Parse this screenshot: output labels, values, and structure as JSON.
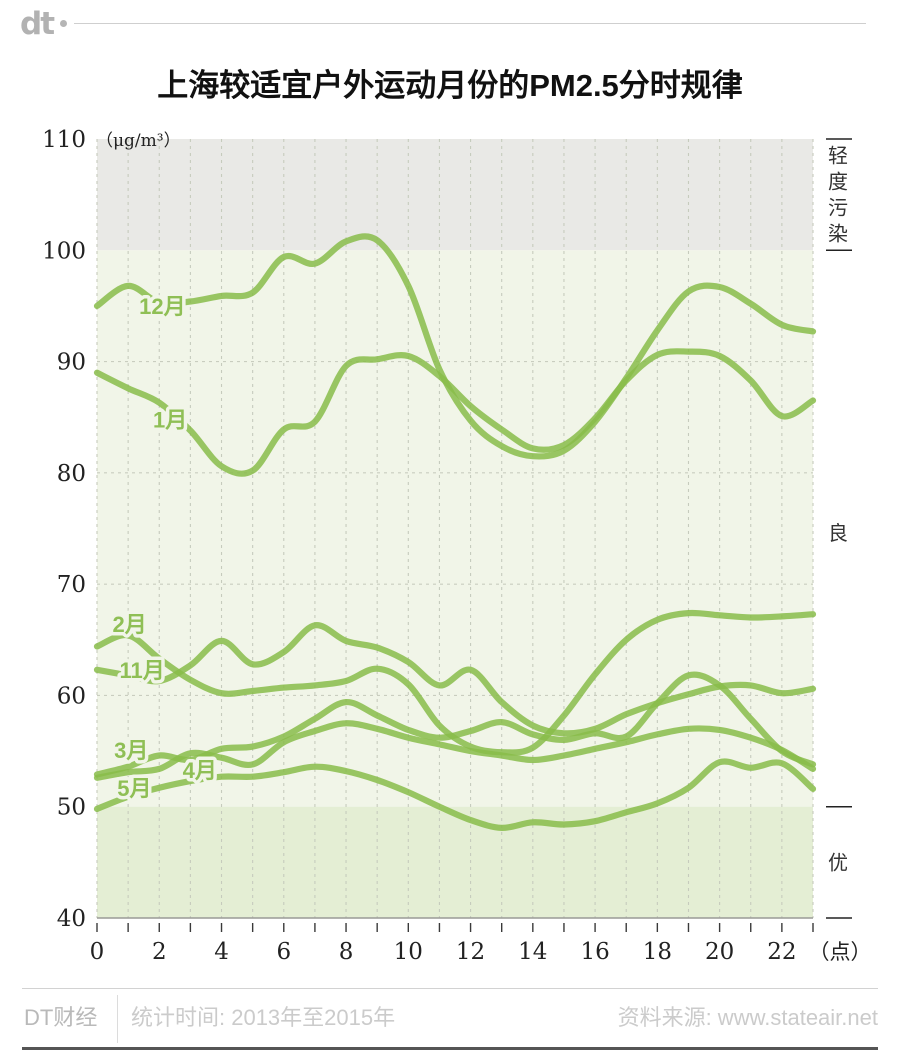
{
  "header": {
    "logo": "dt",
    "title": "上海较适宜户外运动月份的PM2.5分时规律"
  },
  "axis": {
    "y_unit": "（μg/m³）",
    "y_ticks": [
      110,
      100,
      90,
      80,
      70,
      60,
      50,
      40
    ],
    "x_ticks": [
      0,
      2,
      4,
      6,
      8,
      10,
      12,
      14,
      16,
      18,
      20,
      22
    ],
    "x_unit": "（点）",
    "right_tick_values": [
      110,
      100,
      50,
      40
    ]
  },
  "bands": [
    {
      "label": "轻度污染",
      "from": 100,
      "to": 110,
      "color": "#e9e9e6"
    },
    {
      "label": "良",
      "from": 50,
      "to": 100,
      "color": "#f1f5e8"
    },
    {
      "label": "优",
      "from": 40,
      "to": 50,
      "color": "#e4eed4"
    }
  ],
  "chart_data": {
    "type": "line",
    "title": "上海较适宜户外运动月份的PM2.5分时规律",
    "xlabel": "（点）",
    "ylabel": "（μg/m³）",
    "x": [
      0,
      1,
      2,
      3,
      4,
      5,
      6,
      7,
      8,
      9,
      10,
      11,
      12,
      13,
      14,
      15,
      16,
      17,
      18,
      19,
      20,
      21,
      22,
      23
    ],
    "xlim": [
      0,
      23
    ],
    "ylim": [
      40,
      110
    ],
    "grid": "dashed",
    "line_color": "#88bc4a",
    "series": [
      {
        "name": "12月",
        "values": [
          95.0,
          96.8,
          95.3,
          95.4,
          95.9,
          96.2,
          99.4,
          98.8,
          100.8,
          100.9,
          96.8,
          89.3,
          84.7,
          82.4,
          81.5,
          82.0,
          84.6,
          88.5,
          92.8,
          96.3,
          96.7,
          95.2,
          93.3,
          92.7
        ]
      },
      {
        "name": "1月",
        "values": [
          89.0,
          87.6,
          86.3,
          83.8,
          80.6,
          80.2,
          83.9,
          84.6,
          89.6,
          90.2,
          90.5,
          88.7,
          86.0,
          83.9,
          82.2,
          82.5,
          84.9,
          88.3,
          90.6,
          90.9,
          90.5,
          88.3,
          85.1,
          86.5
        ]
      },
      {
        "name": "2月",
        "values": [
          64.4,
          65.4,
          63.3,
          61.4,
          60.2,
          60.4,
          60.7,
          60.9,
          61.3,
          62.4,
          61.0,
          57.3,
          55.4,
          54.9,
          55.3,
          58.2,
          61.9,
          65.0,
          66.8,
          67.4,
          67.2,
          67.0,
          67.1,
          67.3
        ]
      },
      {
        "name": "11月",
        "values": [
          62.3,
          61.8,
          61.3,
          62.7,
          64.9,
          62.8,
          63.9,
          66.3,
          64.9,
          64.3,
          63.0,
          60.9,
          62.3,
          59.4,
          57.3,
          56.6,
          57.0,
          58.3,
          59.3,
          60.1,
          60.8,
          60.9,
          60.2,
          60.6
        ]
      },
      {
        "name": "3月",
        "values": [
          52.9,
          53.6,
          54.6,
          54.2,
          55.2,
          55.4,
          56.3,
          57.9,
          59.4,
          58.2,
          56.9,
          56.2,
          56.8,
          57.6,
          56.5,
          56.0,
          56.6,
          56.3,
          59.3,
          61.8,
          60.9,
          57.9,
          55.0,
          53.8
        ]
      },
      {
        "name": "4月",
        "values": [
          52.6,
          53.1,
          53.4,
          54.8,
          54.4,
          53.8,
          55.8,
          56.8,
          57.5,
          57.0,
          56.2,
          55.6,
          55.0,
          54.6,
          54.2,
          54.6,
          55.2,
          55.8,
          56.5,
          57.0,
          56.9,
          56.2,
          55.1,
          53.4
        ]
      },
      {
        "name": "5月",
        "values": [
          49.8,
          50.9,
          51.7,
          52.3,
          52.7,
          52.7,
          53.1,
          53.6,
          53.2,
          52.4,
          51.3,
          50.0,
          48.8,
          48.1,
          48.6,
          48.4,
          48.7,
          49.5,
          50.3,
          51.7,
          54.0,
          53.5,
          53.9,
          51.6
        ]
      }
    ]
  },
  "footer": {
    "brand": "DT财经",
    "period": "统计时间: 2013年至2015年",
    "source": "资料来源: www.stateair.net"
  }
}
